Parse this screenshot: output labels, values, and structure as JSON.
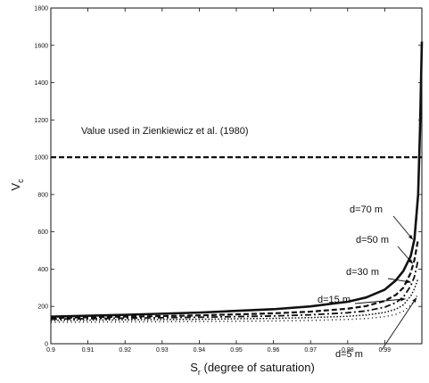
{
  "chart_data": {
    "type": "line",
    "xlabel": "S",
    "xlabel_sub": "r",
    "xlabel_rest": " (degree of saturation)",
    "ylabel": "V",
    "ylabel_sub": "c",
    "xlim": [
      0.9,
      1.0
    ],
    "ylim": [
      0,
      1800
    ],
    "x_ticks": [
      0.9,
      0.91,
      0.92,
      0.93,
      0.94,
      0.95,
      0.96,
      0.97,
      0.98,
      0.99
    ],
    "x_tick_labels": [
      "0.9",
      "0.91",
      "0.92",
      "0.93",
      "0.94",
      "0.95",
      "0.96",
      "0.97",
      "0.98",
      "0.99"
    ],
    "y_ticks": [
      0,
      200,
      400,
      600,
      800,
      1000,
      1200,
      1400,
      1600,
      1800
    ],
    "y_tick_labels": [
      "0",
      "200",
      "400",
      "600",
      "800",
      "1000",
      "1200",
      "1400",
      "1600",
      "1800"
    ],
    "grid": false,
    "reference_line": {
      "y": 1000,
      "label": "Value used in Zienkiewicz et al. (1980)"
    },
    "series": [
      {
        "name": "d=70 m",
        "style": "solid",
        "x": [
          0.9,
          0.92,
          0.94,
          0.96,
          0.97,
          0.98,
          0.985,
          0.99,
          0.993,
          0.995,
          0.997,
          0.998,
          0.999,
          0.9995,
          1.0
        ],
        "y": [
          145,
          155,
          167,
          185,
          200,
          225,
          248,
          290,
          340,
          390,
          470,
          560,
          800,
          1150,
          1620
        ]
      },
      {
        "name": "d=50 m",
        "style": "dashed",
        "x": [
          0.9,
          0.92,
          0.94,
          0.96,
          0.97,
          0.98,
          0.985,
          0.99,
          0.993,
          0.995,
          0.997,
          0.998,
          0.999
        ],
        "y": [
          138,
          145,
          152,
          163,
          172,
          188,
          202,
          230,
          262,
          300,
          380,
          450,
          560
        ]
      },
      {
        "name": "d=30 m",
        "style": "dashdot",
        "x": [
          0.9,
          0.92,
          0.94,
          0.96,
          0.97,
          0.98,
          0.985,
          0.99,
          0.993,
          0.995,
          0.997,
          0.998,
          0.999
        ],
        "y": [
          132,
          137,
          142,
          149,
          155,
          166,
          176,
          196,
          220,
          250,
          310,
          360,
          450
        ]
      },
      {
        "name": "d=15 m",
        "style": "dotted",
        "x": [
          0.9,
          0.92,
          0.94,
          0.96,
          0.97,
          0.98,
          0.985,
          0.99,
          0.993,
          0.995,
          0.997,
          0.998,
          0.999
        ],
        "y": [
          125,
          128,
          131,
          136,
          140,
          147,
          154,
          168,
          185,
          208,
          255,
          295,
          350
        ]
      },
      {
        "name": "d=5 m",
        "style": "sparse-dotted",
        "x": [
          0.9,
          0.92,
          0.94,
          0.96,
          0.97,
          0.98,
          0.985,
          0.99,
          0.993,
          0.995,
          0.997,
          0.998,
          0.999
        ],
        "y": [
          115,
          117,
          119,
          122,
          125,
          130,
          135,
          145,
          158,
          175,
          205,
          232,
          270
        ]
      }
    ],
    "annotations": [
      {
        "text": "d=70 m",
        "arrow_to": {
          "x": 0.9975,
          "y": 560
        }
      },
      {
        "text": "d=50 m",
        "arrow_to": {
          "x": 0.9975,
          "y": 430
        }
      },
      {
        "text": "d=30 m",
        "arrow_to": {
          "x": 0.997,
          "y": 330
        }
      },
      {
        "text": "d=15 m",
        "arrow_to": {
          "x": 0.9955,
          "y": 240
        }
      },
      {
        "text": "d=5 m",
        "arrow_to": {
          "x": 0.9985,
          "y": 245
        }
      }
    ]
  }
}
